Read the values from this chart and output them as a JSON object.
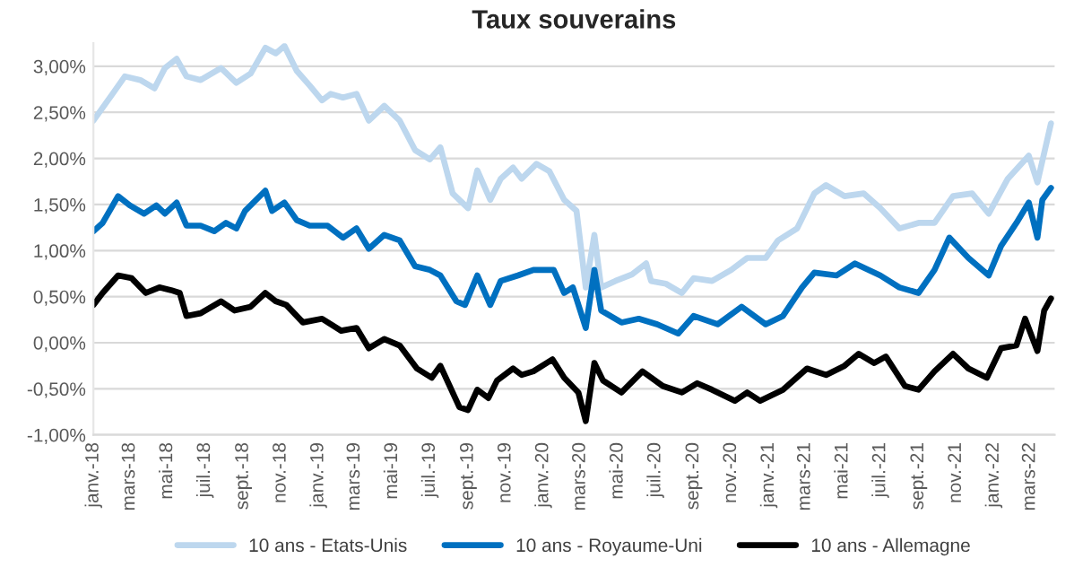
{
  "chart_data": {
    "type": "line",
    "title": "Taux souverains",
    "xlim": [
      "2018-01-01",
      "2022-04-10"
    ],
    "xticks": [
      {
        "value": "2018-01-01",
        "label": "janv.-18"
      },
      {
        "value": "2018-03-01",
        "label": "mars-18"
      },
      {
        "value": "2018-05-01",
        "label": "mai-18"
      },
      {
        "value": "2018-07-01",
        "label": "juil.-18"
      },
      {
        "value": "2018-09-01",
        "label": "sept.-18"
      },
      {
        "value": "2018-11-01",
        "label": "nov.-18"
      },
      {
        "value": "2019-01-01",
        "label": "janv.-19"
      },
      {
        "value": "2019-03-01",
        "label": "mars-19"
      },
      {
        "value": "2019-05-01",
        "label": "mai-19"
      },
      {
        "value": "2019-07-01",
        "label": "juil.-19"
      },
      {
        "value": "2019-09-01",
        "label": "sept.-19"
      },
      {
        "value": "2019-11-01",
        "label": "nov.-19"
      },
      {
        "value": "2020-01-01",
        "label": "janv.-20"
      },
      {
        "value": "2020-03-01",
        "label": "mars-20"
      },
      {
        "value": "2020-05-01",
        "label": "mai-20"
      },
      {
        "value": "2020-07-01",
        "label": "juil.-20"
      },
      {
        "value": "2020-09-01",
        "label": "sept.-20"
      },
      {
        "value": "2020-11-01",
        "label": "nov.-20"
      },
      {
        "value": "2021-01-01",
        "label": "janv.-21"
      },
      {
        "value": "2021-03-01",
        "label": "mars-21"
      },
      {
        "value": "2021-05-01",
        "label": "mai-21"
      },
      {
        "value": "2021-07-01",
        "label": "juil.-21"
      },
      {
        "value": "2021-09-01",
        "label": "sept.-21"
      },
      {
        "value": "2021-11-01",
        "label": "nov.-21"
      },
      {
        "value": "2022-01-01",
        "label": "janv.-22"
      },
      {
        "value": "2022-03-01",
        "label": "mars-22"
      }
    ],
    "ylim": [
      -1.0,
      3.25
    ],
    "yticks": [
      {
        "value": -1.0,
        "label": "-1,00%"
      },
      {
        "value": -0.5,
        "label": "-0,50%"
      },
      {
        "value": 0.0,
        "label": "0,00%"
      },
      {
        "value": 0.5,
        "label": "0,50%"
      },
      {
        "value": 1.0,
        "label": "1,00%"
      },
      {
        "value": 1.5,
        "label": "1,50%"
      },
      {
        "value": 2.0,
        "label": "2,00%"
      },
      {
        "value": 2.5,
        "label": "2,50%"
      },
      {
        "value": 3.0,
        "label": "3,00%"
      }
    ],
    "grid": "y",
    "legend": "bottom",
    "marker": "none",
    "line_style": "solid",
    "series": [
      {
        "name": "10 ans - Etats-Unis",
        "color": "#bdd7ee",
        "x": [
          "2018-01-01",
          "2018-02-01",
          "2018-02-21",
          "2018-03-18",
          "2018-04-10",
          "2018-04-27",
          "2018-05-16",
          "2018-06-01",
          "2018-06-24",
          "2018-07-27",
          "2018-08-21",
          "2018-09-13",
          "2018-10-07",
          "2018-10-24",
          "2018-11-07",
          "2018-11-27",
          "2018-12-18",
          "2019-01-07",
          "2019-01-21",
          "2019-02-10",
          "2019-03-04",
          "2019-03-24",
          "2019-04-18",
          "2019-05-13",
          "2019-06-07",
          "2019-07-01",
          "2019-07-18",
          "2019-08-07",
          "2019-09-01",
          "2019-09-16",
          "2019-10-07",
          "2019-10-24",
          "2019-11-13",
          "2019-11-27",
          "2019-12-21",
          "2020-01-11",
          "2020-02-04",
          "2020-02-24",
          "2020-03-10",
          "2020-03-24",
          "2020-04-04",
          "2020-04-27",
          "2020-05-24",
          "2020-06-16",
          "2020-06-24",
          "2020-07-18",
          "2020-08-13",
          "2020-09-01",
          "2020-10-01",
          "2020-11-01",
          "2020-11-27",
          "2020-12-27",
          "2021-01-16",
          "2021-02-16",
          "2021-03-16",
          "2021-04-04",
          "2021-05-04",
          "2021-06-04",
          "2021-07-01",
          "2021-08-01",
          "2021-09-01",
          "2021-09-27",
          "2021-10-27",
          "2021-11-27",
          "2021-12-24",
          "2022-01-24",
          "2022-02-27",
          "2022-03-13",
          "2022-03-24",
          "2022-04-04"
        ],
        "values": [
          2.41,
          2.7,
          2.89,
          2.85,
          2.76,
          2.98,
          3.08,
          2.89,
          2.85,
          2.98,
          2.82,
          2.92,
          3.2,
          3.14,
          3.22,
          2.95,
          2.79,
          2.63,
          2.7,
          2.66,
          2.7,
          2.41,
          2.57,
          2.41,
          2.09,
          1.99,
          2.12,
          1.62,
          1.46,
          1.87,
          1.55,
          1.78,
          1.9,
          1.78,
          1.94,
          1.86,
          1.55,
          1.43,
          0.6,
          1.17,
          0.6,
          0.67,
          0.74,
          0.86,
          0.67,
          0.64,
          0.54,
          0.7,
          0.67,
          0.79,
          0.92,
          0.92,
          1.11,
          1.24,
          1.62,
          1.71,
          1.59,
          1.62,
          1.46,
          1.24,
          1.3,
          1.3,
          1.59,
          1.62,
          1.4,
          1.78,
          2.03,
          1.74,
          2.06,
          2.38
        ]
      },
      {
        "name": "10 ans - Royaume-Uni",
        "color": "#0070c0",
        "x": [
          "2018-01-01",
          "2018-01-16",
          "2018-02-10",
          "2018-03-01",
          "2018-03-24",
          "2018-04-13",
          "2018-04-27",
          "2018-05-16",
          "2018-06-01",
          "2018-06-24",
          "2018-07-16",
          "2018-08-04",
          "2018-08-21",
          "2018-09-04",
          "2018-10-07",
          "2018-10-18",
          "2018-11-07",
          "2018-11-27",
          "2018-12-18",
          "2019-01-16",
          "2019-02-10",
          "2019-03-04",
          "2019-03-24",
          "2019-04-18",
          "2019-05-13",
          "2019-06-07",
          "2019-07-01",
          "2019-07-18",
          "2019-08-13",
          "2019-08-27",
          "2019-09-16",
          "2019-10-07",
          "2019-10-24",
          "2019-11-21",
          "2019-12-16",
          "2020-01-18",
          "2020-02-04",
          "2020-02-18",
          "2020-03-10",
          "2020-03-24",
          "2020-04-04",
          "2020-05-07",
          "2020-06-04",
          "2020-07-04",
          "2020-08-07",
          "2020-09-01",
          "2020-10-10",
          "2020-11-18",
          "2020-12-27",
          "2021-01-24",
          "2021-02-24",
          "2021-03-16",
          "2021-04-21",
          "2021-05-21",
          "2021-07-01",
          "2021-08-01",
          "2021-09-01",
          "2021-09-27",
          "2021-10-21",
          "2021-11-21",
          "2021-12-24",
          "2022-01-13",
          "2022-02-07",
          "2022-02-27",
          "2022-03-13",
          "2022-03-21",
          "2022-04-04"
        ],
        "values": [
          1.21,
          1.3,
          1.59,
          1.49,
          1.4,
          1.49,
          1.4,
          1.52,
          1.27,
          1.27,
          1.21,
          1.3,
          1.24,
          1.43,
          1.65,
          1.43,
          1.52,
          1.33,
          1.27,
          1.27,
          1.14,
          1.24,
          1.02,
          1.17,
          1.11,
          0.83,
          0.79,
          0.73,
          0.45,
          0.41,
          0.73,
          0.41,
          0.67,
          0.73,
          0.79,
          0.79,
          0.54,
          0.6,
          0.16,
          0.79,
          0.35,
          0.22,
          0.26,
          0.2,
          0.1,
          0.29,
          0.2,
          0.39,
          0.2,
          0.29,
          0.6,
          0.76,
          0.73,
          0.86,
          0.73,
          0.6,
          0.54,
          0.79,
          1.14,
          0.92,
          0.73,
          1.05,
          1.3,
          1.52,
          1.14,
          1.55,
          1.68
        ]
      },
      {
        "name": "10 ans - Allemagne",
        "color": "#000000",
        "x": [
          "2018-01-01",
          "2018-01-16",
          "2018-02-10",
          "2018-03-04",
          "2018-03-27",
          "2018-04-18",
          "2018-05-07",
          "2018-05-21",
          "2018-06-01",
          "2018-06-24",
          "2018-07-27",
          "2018-08-18",
          "2018-09-13",
          "2018-10-07",
          "2018-10-24",
          "2018-11-10",
          "2018-12-07",
          "2019-01-07",
          "2019-02-07",
          "2019-03-04",
          "2019-03-24",
          "2019-04-18",
          "2019-05-13",
          "2019-06-10",
          "2019-07-04",
          "2019-07-18",
          "2019-08-18",
          "2019-09-01",
          "2019-09-16",
          "2019-10-04",
          "2019-10-18",
          "2019-11-13",
          "2019-11-27",
          "2019-12-16",
          "2020-01-16",
          "2020-02-04",
          "2020-02-27",
          "2020-03-10",
          "2020-03-24",
          "2020-04-07",
          "2020-05-07",
          "2020-06-10",
          "2020-07-13",
          "2020-08-13",
          "2020-09-07",
          "2020-10-01",
          "2020-11-07",
          "2020-11-27",
          "2020-12-18",
          "2021-01-24",
          "2021-03-04",
          "2021-04-04",
          "2021-05-04",
          "2021-05-27",
          "2021-06-21",
          "2021-07-10",
          "2021-08-10",
          "2021-09-01",
          "2021-09-27",
          "2021-10-27",
          "2021-11-21",
          "2021-12-21",
          "2022-01-13",
          "2022-02-07",
          "2022-02-21",
          "2022-03-13",
          "2022-03-24",
          "2022-04-04"
        ],
        "values": [
          0.41,
          0.54,
          0.73,
          0.7,
          0.54,
          0.6,
          0.57,
          0.54,
          0.29,
          0.32,
          0.45,
          0.35,
          0.39,
          0.54,
          0.45,
          0.41,
          0.22,
          0.26,
          0.13,
          0.16,
          -0.06,
          0.04,
          -0.03,
          -0.28,
          -0.38,
          -0.25,
          -0.7,
          -0.73,
          -0.51,
          -0.6,
          -0.41,
          -0.28,
          -0.35,
          -0.31,
          -0.18,
          -0.38,
          -0.54,
          -0.85,
          -0.22,
          -0.41,
          -0.54,
          -0.31,
          -0.47,
          -0.54,
          -0.44,
          -0.51,
          -0.63,
          -0.54,
          -0.63,
          -0.51,
          -0.28,
          -0.35,
          -0.25,
          -0.12,
          -0.22,
          -0.15,
          -0.47,
          -0.51,
          -0.31,
          -0.12,
          -0.28,
          -0.38,
          -0.06,
          -0.03,
          0.26,
          -0.09,
          0.35,
          0.48
        ]
      }
    ]
  }
}
